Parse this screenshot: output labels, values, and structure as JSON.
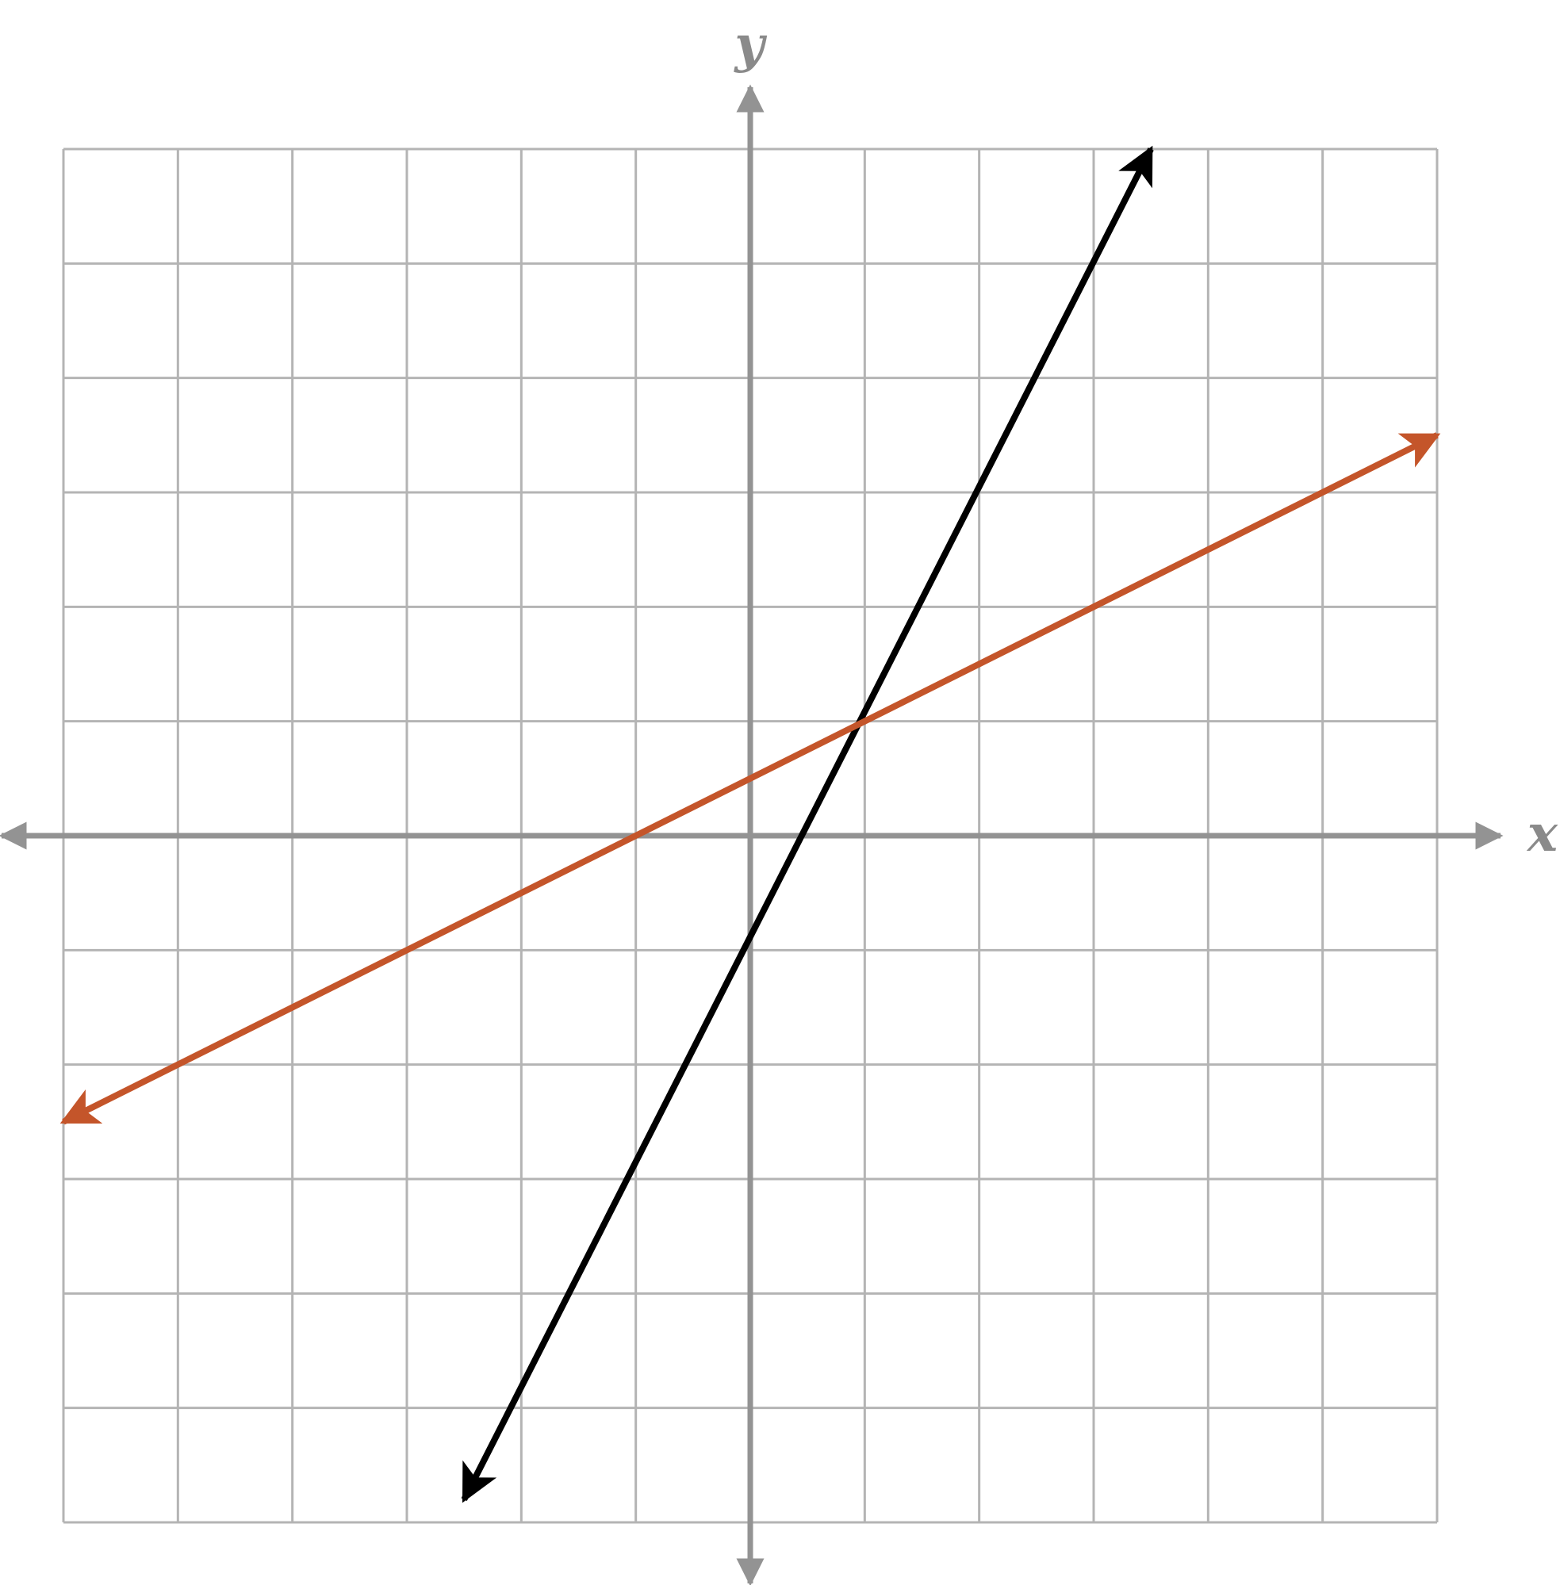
{
  "chart_data": {
    "type": "line",
    "title": "",
    "xlabel": "x",
    "ylabel": "y",
    "xlim": [
      -6,
      6
    ],
    "ylim": [
      -6,
      6
    ],
    "grid": true,
    "tick_labels_shown": false,
    "series": [
      {
        "color": "#000000",
        "both_ends_arrows": true,
        "x": [
          -2.5,
          3.5
        ],
        "y": [
          -5.8,
          6.0
        ]
      },
      {
        "color": "#c4552a",
        "both_ends_arrows": true,
        "x": [
          -6.0,
          6.0
        ],
        "y": [
          -2.5,
          3.5
        ]
      }
    ]
  },
  "colors": {
    "grid": "#b4b4b4",
    "axes": "#939393"
  }
}
